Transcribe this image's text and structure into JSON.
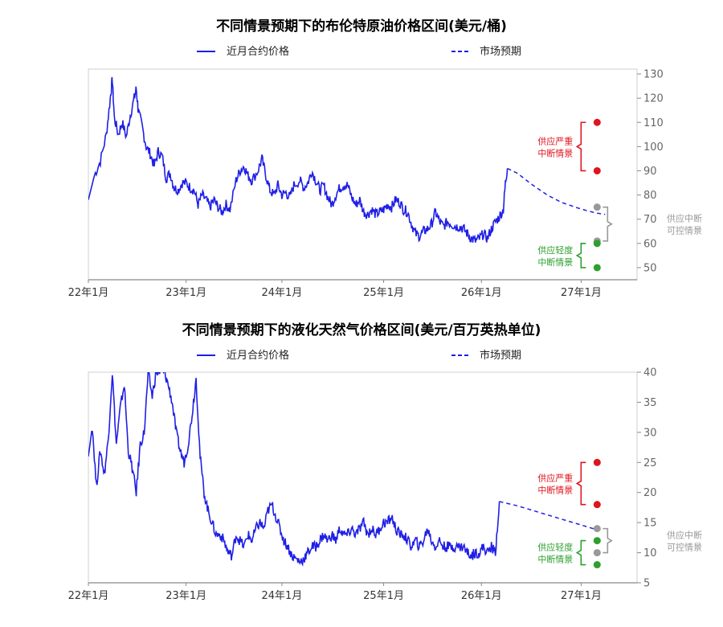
{
  "chart_data": [
    {
      "type": "line",
      "title": "不同情景预期下的布伦特原油价格区间(美元/桶)",
      "legend": [
        "近月合约价格",
        "市场预期"
      ],
      "legend_placement": "top",
      "xlabels": [
        "22年1月",
        "23年1月",
        "24年1月",
        "25年1月",
        "26年1月",
        "27年1月"
      ],
      "ylim": [
        45,
        132
      ],
      "yticks": [
        50,
        60,
        70,
        80,
        90,
        100,
        110,
        120,
        130
      ],
      "y_axis_side": "right",
      "grid": false,
      "colors": {
        "series": "#1f1fe6",
        "severe": "#e0141e",
        "mild": "#2ca02c",
        "control": "#999999"
      },
      "series": [
        {
          "name": "近月合约价格",
          "style": "solid",
          "points": [
            [
              0,
              78
            ],
            [
              0.3,
              88
            ],
            [
              0.6,
              94
            ],
            [
              0.9,
              105
            ],
            [
              1.1,
              120
            ],
            [
              1.2,
              128
            ],
            [
              1.3,
              112
            ],
            [
              1.5,
              105
            ],
            [
              1.7,
              110
            ],
            [
              1.9,
              104
            ],
            [
              2.1,
              113
            ],
            [
              2.3,
              120
            ],
            [
              2.4,
              124
            ],
            [
              2.5,
              115
            ],
            [
              2.7,
              108
            ],
            [
              2.9,
              100
            ],
            [
              3.1,
              97
            ],
            [
              3.3,
              92
            ],
            [
              3.5,
              98
            ],
            [
              3.7,
              96
            ],
            [
              3.9,
              87
            ],
            [
              4.1,
              89
            ],
            [
              4.3,
              83
            ],
            [
              4.5,
              82
            ],
            [
              4.7,
              85
            ],
            [
              4.9,
              85
            ],
            [
              5.1,
              83
            ],
            [
              5.3,
              82
            ],
            [
              5.5,
              76
            ],
            [
              5.7,
              80
            ],
            [
              5.9,
              78
            ],
            [
              6.1,
              75
            ],
            [
              6.3,
              78
            ],
            [
              6.5,
              75
            ],
            [
              6.7,
              73
            ],
            [
              6.9,
              76
            ],
            [
              7.1,
              74
            ],
            [
              7.4,
              86
            ],
            [
              7.6,
              90
            ],
            [
              7.8,
              92
            ],
            [
              8.0,
              88
            ],
            [
              8.2,
              86
            ],
            [
              8.5,
              90
            ],
            [
              8.7,
              95
            ],
            [
              8.9,
              88
            ],
            [
              9.1,
              82
            ],
            [
              9.3,
              80
            ],
            [
              9.5,
              84
            ],
            [
              9.7,
              80
            ],
            [
              9.9,
              81
            ],
            [
              10.1,
              79
            ],
            [
              10.3,
              84
            ],
            [
              10.6,
              86
            ],
            [
              10.8,
              83
            ],
            [
              11.0,
              85
            ],
            [
              11.2,
              90
            ],
            [
              11.4,
              86
            ],
            [
              11.6,
              82
            ],
            [
              11.8,
              84
            ],
            [
              12.0,
              79
            ],
            [
              12.2,
              76
            ],
            [
              12.4,
              80
            ],
            [
              12.6,
              83
            ],
            [
              12.8,
              84
            ],
            [
              13.0,
              84
            ],
            [
              13.2,
              79
            ],
            [
              13.4,
              76
            ],
            [
              13.6,
              78
            ],
            [
              13.8,
              73
            ],
            [
              14.0,
              72
            ],
            [
              14.2,
              74
            ],
            [
              14.4,
              72
            ],
            [
              14.6,
              73
            ],
            [
              14.8,
              74
            ],
            [
              15.0,
              76
            ],
            [
              15.2,
              75
            ],
            [
              15.4,
              78
            ],
            [
              15.6,
              77
            ],
            [
              15.8,
              74
            ],
            [
              16.0,
              73
            ],
            [
              16.2,
              68
            ],
            [
              16.4,
              64
            ],
            [
              16.6,
              63
            ],
            [
              16.8,
              65
            ],
            [
              17.0,
              66
            ],
            [
              17.2,
              68
            ],
            [
              17.4,
              73
            ],
            [
              17.6,
              69
            ],
            [
              17.8,
              67
            ],
            [
              18.0,
              69
            ],
            [
              18.2,
              68
            ],
            [
              18.4,
              67
            ],
            [
              18.6,
              67
            ],
            [
              18.8,
              66
            ],
            [
              19.0,
              64
            ],
            [
              19.2,
              62
            ],
            [
              19.4,
              61
            ],
            [
              19.6,
              62
            ],
            [
              19.8,
              64
            ],
            [
              20.0,
              62
            ],
            [
              20.2,
              66
            ],
            [
              20.4,
              69
            ],
            [
              20.6,
              71
            ],
            [
              20.8,
              74
            ],
            [
              20.9,
              85
            ],
            [
              21.0,
              91
            ]
          ]
        },
        {
          "name": "市场预期",
          "style": "dashed",
          "points": [
            [
              21.0,
              91
            ],
            [
              21.5,
              89
            ],
            [
              22.2,
              84.5
            ],
            [
              23.0,
              80
            ],
            [
              23.7,
              77
            ],
            [
              24.4,
              75
            ],
            [
              25.0,
              73.5
            ],
            [
              25.5,
              72.5
            ],
            [
              25.9,
              72
            ]
          ]
        }
      ],
      "scenario_points": {
        "x": 25.5,
        "severe": [
          90,
          110
        ],
        "control": [
          61,
          75
        ],
        "mild": [
          50,
          60
        ]
      },
      "annotations": {
        "severe": "供应严重\n中断情景",
        "mild": "供应轻度\n中断情景",
        "control": "供应中断\n可控情景"
      }
    },
    {
      "type": "line",
      "title": "不同情景预期下的液化天然气价格区间(美元/百万英热单位)",
      "legend": [
        "近月合约价格",
        "市场预期"
      ],
      "legend_placement": "top",
      "xlabels": [
        "22年1月",
        "23年1月",
        "24年1月",
        "25年1月",
        "26年1月",
        "27年1月"
      ],
      "ylim": [
        5,
        40
      ],
      "yticks": [
        5,
        10,
        15,
        20,
        25,
        30,
        35,
        40
      ],
      "y_axis_side": "right",
      "grid": false,
      "colors": {
        "series": "#1f1fe6",
        "severe": "#e0141e",
        "mild": "#2ca02c",
        "control": "#999999"
      },
      "series": [
        {
          "name": "近月合约价格",
          "style": "solid",
          "points": [
            [
              0,
              26
            ],
            [
              0.2,
              31
            ],
            [
              0.4,
              21
            ],
            [
              0.6,
              27
            ],
            [
              0.8,
              23
            ],
            [
              1.0,
              29
            ],
            [
              1.2,
              40
            ],
            [
              1.4,
              28
            ],
            [
              1.6,
              34
            ],
            [
              1.8,
              38
            ],
            [
              2.0,
              27
            ],
            [
              2.2,
              24
            ],
            [
              2.4,
              20
            ],
            [
              2.6,
              28
            ],
            [
              2.8,
              30
            ],
            [
              3.0,
              40
            ],
            [
              3.2,
              36
            ],
            [
              3.4,
              40
            ],
            [
              3.6,
              40
            ],
            [
              3.8,
              40
            ],
            [
              4.0,
              38
            ],
            [
              4.2,
              35
            ],
            [
              4.4,
              30
            ],
            [
              4.6,
              27
            ],
            [
              4.8,
              25
            ],
            [
              5.0,
              28
            ],
            [
              5.2,
              33
            ],
            [
              5.4,
              39
            ],
            [
              5.6,
              26
            ],
            [
              5.8,
              20
            ],
            [
              6.0,
              17
            ],
            [
              6.2,
              15
            ],
            [
              6.4,
              13
            ],
            [
              6.6,
              13
            ],
            [
              6.8,
              12
            ],
            [
              7.0,
              10
            ],
            [
              7.2,
              9.5
            ],
            [
              7.4,
              13
            ],
            [
              7.6,
              12
            ],
            [
              7.8,
              11
            ],
            [
              8.0,
              13
            ],
            [
              8.2,
              12
            ],
            [
              8.4,
              14
            ],
            [
              8.6,
              15
            ],
            [
              8.8,
              14
            ],
            [
              9.0,
              17
            ],
            [
              9.2,
              18
            ],
            [
              9.4,
              16
            ],
            [
              9.6,
              14
            ],
            [
              9.8,
              12
            ],
            [
              10.0,
              11
            ],
            [
              10.2,
              9.5
            ],
            [
              10.4,
              9
            ],
            [
              10.6,
              8.5
            ],
            [
              10.8,
              9
            ],
            [
              11.0,
              10
            ],
            [
              11.2,
              11
            ],
            [
              11.4,
              11
            ],
            [
              11.6,
              12
            ],
            [
              11.8,
              13
            ],
            [
              12.0,
              12
            ],
            [
              12.2,
              13
            ],
            [
              12.4,
              12
            ],
            [
              12.6,
              14
            ],
            [
              12.8,
              13
            ],
            [
              13.0,
              13
            ],
            [
              13.2,
              14
            ],
            [
              13.4,
              13
            ],
            [
              13.6,
              14
            ],
            [
              13.8,
              15
            ],
            [
              14.0,
              13
            ],
            [
              14.2,
              14
            ],
            [
              14.4,
              13
            ],
            [
              14.6,
              14
            ],
            [
              14.8,
              15
            ],
            [
              15.0,
              15
            ],
            [
              15.2,
              16
            ],
            [
              15.4,
              14
            ],
            [
              15.6,
              13
            ],
            [
              15.8,
              13
            ],
            [
              16.0,
              12
            ],
            [
              16.2,
              11
            ],
            [
              16.4,
              12
            ],
            [
              16.6,
              11
            ],
            [
              16.8,
              12
            ],
            [
              17.0,
              14
            ],
            [
              17.2,
              12
            ],
            [
              17.4,
              11
            ],
            [
              17.6,
              12
            ],
            [
              17.8,
              11
            ],
            [
              18.0,
              11
            ],
            [
              18.2,
              11
            ],
            [
              18.4,
              11
            ],
            [
              18.6,
              11
            ],
            [
              18.8,
              11
            ],
            [
              19.0,
              10
            ],
            [
              19.2,
              9.5
            ],
            [
              19.4,
              10
            ],
            [
              19.6,
              10
            ],
            [
              19.8,
              11
            ],
            [
              20.0,
              10
            ],
            [
              20.2,
              11
            ],
            [
              20.4,
              10
            ],
            [
              20.6,
              18.5
            ]
          ],
          "clip_top": 40
        },
        {
          "name": "市场预期",
          "style": "dashed",
          "points": [
            [
              20.6,
              18.5
            ],
            [
              21.5,
              17.8
            ],
            [
              22.5,
              16.8
            ],
            [
              23.5,
              15.8
            ],
            [
              24.5,
              14.8
            ],
            [
              25.5,
              13.8
            ]
          ]
        }
      ],
      "scenario_points": {
        "x": 25.5,
        "severe": [
          18,
          25
        ],
        "control": [
          10,
          14
        ],
        "mild": [
          8,
          12
        ]
      },
      "annotations": {
        "severe": "供应严重\n中断情景",
        "mild": "供应轻度\n中断情景",
        "control": "供应中断\n可控情景"
      }
    }
  ]
}
